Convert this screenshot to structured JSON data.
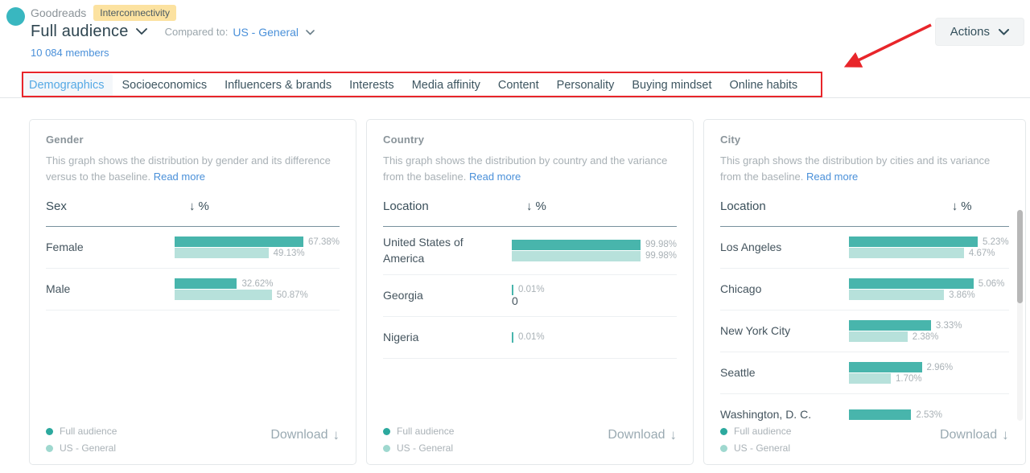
{
  "header": {
    "audience_name": "Goodreads",
    "badge": "Interconnectivity",
    "segment": "Full audience",
    "compared_label": "Compared to:",
    "baseline_name": "US - General",
    "members": "10 084 members",
    "actions_label": "Actions"
  },
  "tabs": [
    {
      "label": "Demographics",
      "active": true
    },
    {
      "label": "Socioeconomics",
      "active": false
    },
    {
      "label": "Influencers & brands",
      "active": false
    },
    {
      "label": "Interests",
      "active": false
    },
    {
      "label": "Media affinity",
      "active": false
    },
    {
      "label": "Content",
      "active": false
    },
    {
      "label": "Personality",
      "active": false
    },
    {
      "label": "Buying mindset",
      "active": false
    },
    {
      "label": "Online habits",
      "active": false
    }
  ],
  "cards": [
    {
      "title": "Gender",
      "description": "This graph shows the distribution by gender and its difference versus to the baseline.",
      "read_more": "Read more",
      "col_label": "Sex",
      "col_value": "%",
      "rows": [
        {
          "label": "Female",
          "primary": 67.38,
          "primary_label": "67.38%",
          "baseline": 49.13,
          "baseline_label": "49.13%"
        },
        {
          "label": "Male",
          "primary": 32.62,
          "primary_label": "32.62%",
          "baseline": 50.87,
          "baseline_label": "50.87%"
        }
      ],
      "legend": [
        "Full audience",
        "US - General"
      ],
      "download_label": "Download",
      "scrollbar": false
    },
    {
      "title": "Country",
      "description": "This graph shows the distribution by country and the variance from the baseline.",
      "read_more": "Read more",
      "col_label": "Location",
      "col_value": "%",
      "rows": [
        {
          "label": "United States of America",
          "primary": 99.98,
          "primary_label": "99.98%",
          "baseline": 99.98,
          "baseline_label": "99.98%"
        },
        {
          "label": "Georgia",
          "primary": 0.01,
          "primary_label": "0.01%",
          "baseline": 0,
          "baseline_label": "0"
        },
        {
          "label": "Nigeria",
          "primary": 0.01,
          "primary_label": "0.01%"
        }
      ],
      "legend": [
        "Full audience",
        "US - General"
      ],
      "download_label": "Download",
      "scrollbar": false
    },
    {
      "title": "City",
      "description": "This graph shows the distribution by cities and its variance from the baseline.",
      "read_more": "Read more",
      "col_label": "Location",
      "col_value": "%",
      "rows": [
        {
          "label": "Los Angeles",
          "primary": 5.23,
          "primary_label": "5.23%",
          "baseline": 4.67,
          "baseline_label": "4.67%"
        },
        {
          "label": "Chicago",
          "primary": 5.06,
          "primary_label": "5.06%",
          "baseline": 3.86,
          "baseline_label": "3.86%"
        },
        {
          "label": "New York City",
          "primary": 3.33,
          "primary_label": "3.33%",
          "baseline": 2.38,
          "baseline_label": "2.38%"
        },
        {
          "label": "Seattle",
          "primary": 2.96,
          "primary_label": "2.96%",
          "baseline": 1.7,
          "baseline_label": "1.70%"
        },
        {
          "label": "Washington, D. C.",
          "primary": 2.53,
          "primary_label": "2.53%"
        }
      ],
      "legend": [
        "Full audience",
        "US - General"
      ],
      "download_label": "Download",
      "scrollbar": true
    }
  ],
  "colors": {
    "accent_teal": "#39b7c0",
    "primary_bar": "#48b5ac",
    "baseline_bar": "#b7e1db",
    "legend_primary": "#2ca99e",
    "legend_baseline": "#9fd8cf",
    "link_blue": "#4a90d9",
    "active_tab": "#55a9e5",
    "annotation_red": "#e8252a",
    "badge_bg": "#fce2a0"
  }
}
